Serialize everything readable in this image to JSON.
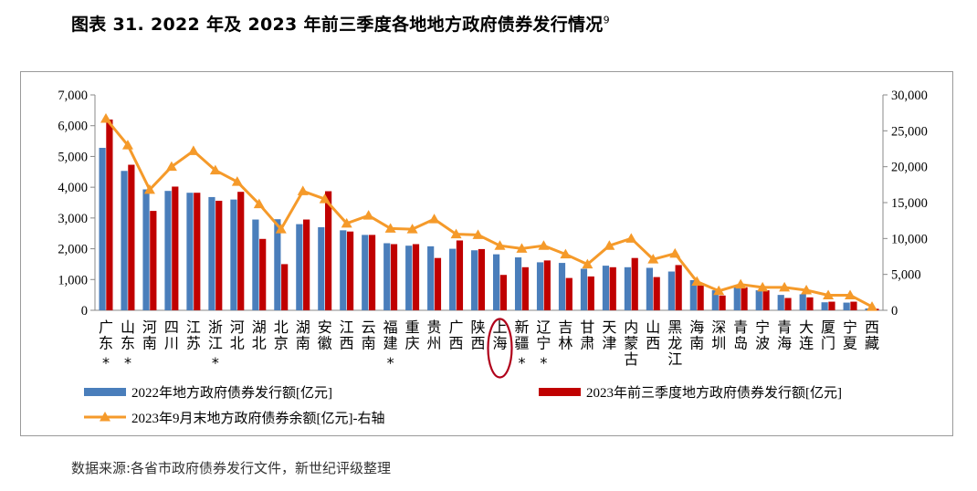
{
  "title": "图表 31.  2022 年及 2023 年前三季度各地地方政府债券发行情况",
  "title_superscript": "9",
  "source": "数据来源:各省市政府债券发行文件，新世纪评级整理",
  "chart_data": {
    "type": "bar",
    "categories": [
      "广东*",
      "山东*",
      "河南",
      "四川",
      "江苏",
      "浙江*",
      "河北",
      "湖北",
      "北京",
      "湖南",
      "安徽",
      "江西",
      "云南",
      "福建*",
      "重庆",
      "贵州",
      "广西",
      "陕西",
      "上海",
      "新疆*",
      "辽宁*",
      "吉林",
      "甘肃",
      "天津",
      "内蒙古",
      "山西",
      "黑龙江",
      "海南",
      "深圳",
      "青岛",
      "宁波",
      "青海",
      "大连",
      "厦门",
      "宁夏",
      "西藏"
    ],
    "highlighted_category": "上海",
    "series": [
      {
        "name": "2022年地方政府债券发行额[亿元]",
        "axis": "left",
        "type": "bar",
        "color": "#4a7ebb",
        "values": [
          5280,
          4530,
          3930,
          3880,
          3820,
          3680,
          3600,
          2950,
          2960,
          2800,
          2700,
          2600,
          2450,
          2180,
          2100,
          2080,
          2000,
          1950,
          1820,
          1720,
          1560,
          1540,
          1350,
          1450,
          1400,
          1380,
          1260,
          980,
          650,
          800,
          650,
          500,
          520,
          260,
          250,
          60
        ]
      },
      {
        "name": "2023年前三季度地方政府债券发行额[亿元]",
        "axis": "left",
        "type": "bar",
        "color": "#c00000",
        "values": [
          6200,
          4730,
          3230,
          4020,
          3820,
          3560,
          3850,
          2320,
          1500,
          2950,
          3870,
          2560,
          2450,
          2150,
          2150,
          1700,
          2270,
          1990,
          1150,
          1400,
          1620,
          1050,
          1100,
          1400,
          1700,
          1080,
          1470,
          800,
          480,
          750,
          650,
          400,
          420,
          280,
          280,
          50
        ]
      },
      {
        "name": "2023年9月末地方政府债券余额[亿元]-右轴",
        "axis": "right",
        "type": "line",
        "color": "#f59a2a",
        "values": [
          26700,
          23000,
          16800,
          20000,
          22200,
          19500,
          17900,
          14800,
          11300,
          16600,
          15500,
          12100,
          13200,
          11400,
          11300,
          12700,
          10600,
          10500,
          9000,
          8600,
          9000,
          7800,
          6400,
          9000,
          10000,
          7100,
          7900,
          4000,
          2700,
          3600,
          3200,
          3200,
          2800,
          2100,
          2100,
          500
        ]
      }
    ],
    "yaxis_left": {
      "min": 0,
      "max": 7000,
      "step": 1000,
      "tick_labels": [
        "0",
        "1,000",
        "2,000",
        "3,000",
        "4,000",
        "5,000",
        "6,000",
        "7,000"
      ]
    },
    "yaxis_right": {
      "min": 0,
      "max": 30000,
      "step": 5000,
      "tick_labels": [
        "0",
        "5,000",
        "10,000",
        "15,000",
        "20,000",
        "25,000",
        "30,000"
      ]
    },
    "grid": false,
    "legend_position": "bottom"
  }
}
